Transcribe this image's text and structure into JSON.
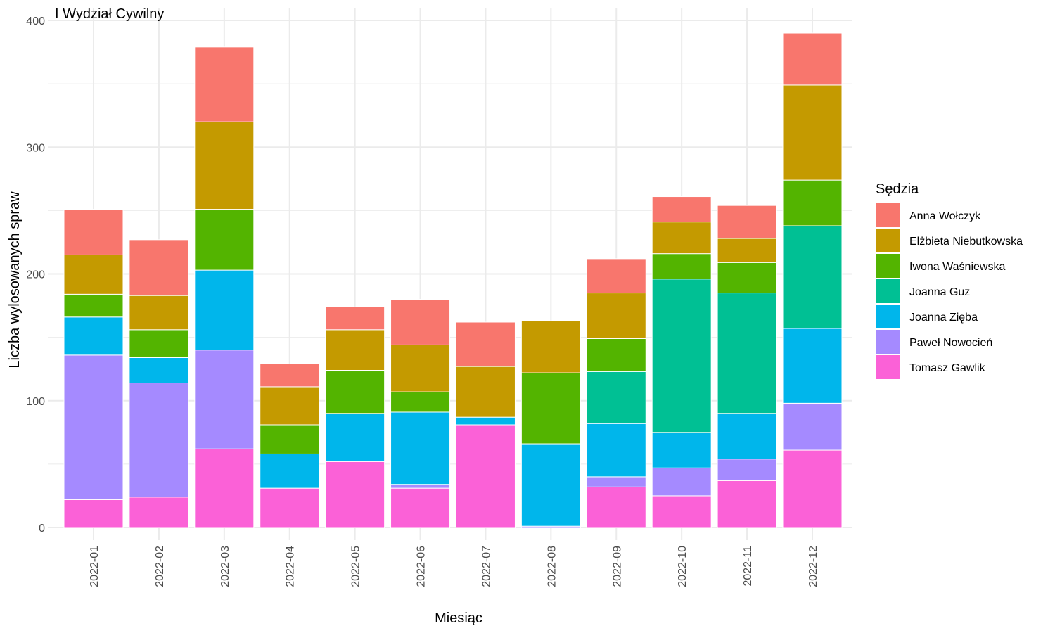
{
  "chart_data": {
    "type": "bar",
    "stacked": true,
    "title": "I Wydział Cywilny",
    "xlabel": "Miesiąc",
    "ylabel": "Liczba wylosowanych spraw",
    "legend_title": "Sędzia",
    "legend_position": "right",
    "grid": true,
    "ylim": [
      0,
      400
    ],
    "yticks": [
      0,
      100,
      200,
      300,
      400
    ],
    "categories": [
      "2022-01",
      "2022-02",
      "2022-03",
      "2022-04",
      "2022-05",
      "2022-06",
      "2022-07",
      "2022-08",
      "2022-09",
      "2022-10",
      "2022-11",
      "2022-12"
    ],
    "series": [
      {
        "name": "Anna Wołczyk",
        "color": "#F8766D",
        "values": [
          36,
          44,
          59,
          18,
          18,
          36,
          35,
          0,
          27,
          20,
          26,
          41
        ]
      },
      {
        "name": "Elżbieta Niebutkowska",
        "color": "#C49A00",
        "values": [
          31,
          27,
          69,
          30,
          32,
          37,
          40,
          41,
          36,
          25,
          19,
          75
        ]
      },
      {
        "name": "Iwona Waśniewska",
        "color": "#53B400",
        "values": [
          18,
          22,
          48,
          23,
          34,
          16,
          0,
          56,
          26,
          20,
          24,
          36
        ]
      },
      {
        "name": "Joanna Guz",
        "color": "#00C094",
        "values": [
          0,
          0,
          0,
          0,
          0,
          0,
          0,
          0,
          41,
          121,
          95,
          81
        ]
      },
      {
        "name": "Joanna Zięba",
        "color": "#00B6EB",
        "values": [
          30,
          20,
          63,
          27,
          38,
          57,
          6,
          65,
          42,
          28,
          36,
          59
        ]
      },
      {
        "name": "Paweł Nowocień",
        "color": "#A58AFF",
        "values": [
          114,
          90,
          78,
          0,
          0,
          3,
          0,
          1,
          8,
          22,
          17,
          37
        ]
      },
      {
        "name": "Tomasz Gawlik",
        "color": "#FB61D7",
        "values": [
          22,
          24,
          62,
          31,
          52,
          31,
          81,
          0,
          32,
          25,
          37,
          61
        ]
      }
    ]
  }
}
